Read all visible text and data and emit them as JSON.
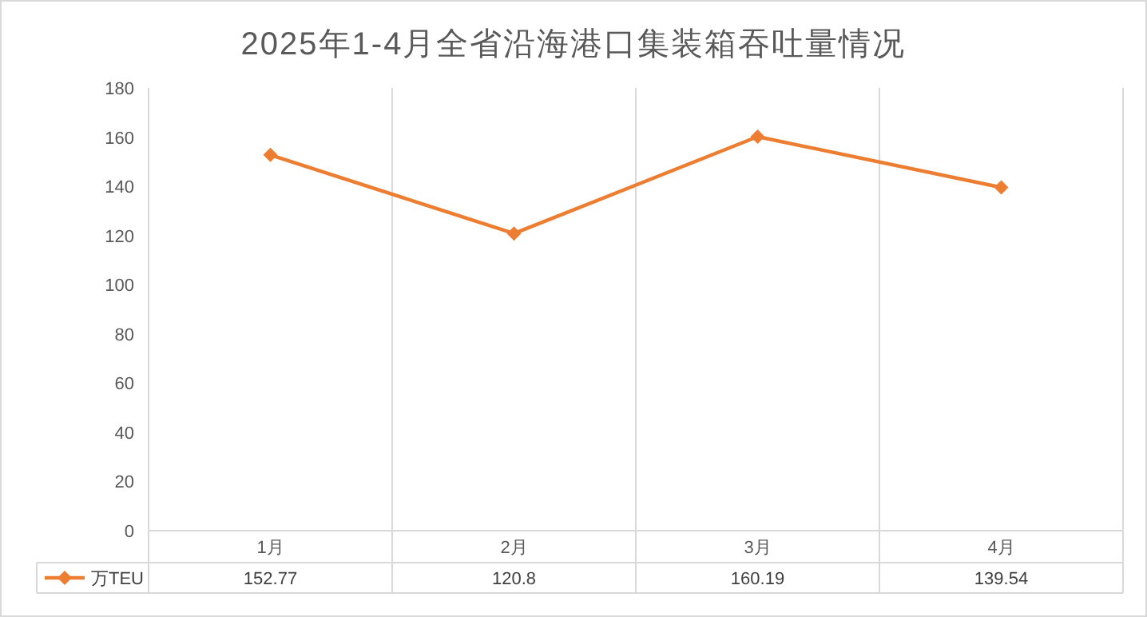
{
  "chart_data": {
    "type": "line",
    "title": "2025年1-4月全省沿海港口集装箱吞吐量情况",
    "categories": [
      "1月",
      "2月",
      "3月",
      "4月"
    ],
    "series": [
      {
        "name": "万TEU",
        "color": "#ed7d31",
        "values": [
          152.77,
          120.8,
          160.19,
          139.54
        ]
      }
    ],
    "ylim": [
      0,
      180
    ],
    "yticks": [
      0,
      20,
      40,
      60,
      80,
      100,
      120,
      140,
      160,
      180
    ],
    "grid": "x",
    "marker": "diamond",
    "line_style": "solid",
    "legend": "bottom left",
    "data_labels": true
  }
}
